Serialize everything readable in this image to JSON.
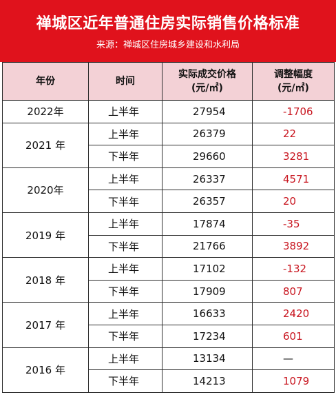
{
  "title": "禅城区近年普通住房实际销售价格标准",
  "source": "来源：禅城区住房城乡建设和水利局",
  "headers": {
    "year": "年份",
    "period": "时间",
    "price_line1": "实际成交价格",
    "price_line2": "(元/㎡)",
    "adj_line1": "调整幅度",
    "adj_line2": "(元/㎡)"
  },
  "groups": [
    {
      "year": "2022年",
      "rows": [
        {
          "period": "上半年",
          "price": "27954",
          "adj": "-1706"
        }
      ]
    },
    {
      "year": "2021 年",
      "rows": [
        {
          "period": "上半年",
          "price": "26379",
          "adj": "22"
        },
        {
          "period": "下半年",
          "price": "29660",
          "adj": "3281"
        }
      ]
    },
    {
      "year": "2020年",
      "rows": [
        {
          "period": "上半年",
          "price": "26337",
          "adj": "4571"
        },
        {
          "period": "下半年",
          "price": "26357",
          "adj": "20"
        }
      ]
    },
    {
      "year": "2019 年",
      "rows": [
        {
          "period": "上半年",
          "price": "17874",
          "adj": "-35"
        },
        {
          "period": "下半年",
          "price": "21766",
          "adj": "3892"
        }
      ]
    },
    {
      "year": "2018 年",
      "rows": [
        {
          "period": "上半年",
          "price": "17102",
          "adj": "-132"
        },
        {
          "period": "下半年",
          "price": "17909",
          "adj": "807"
        }
      ]
    },
    {
      "year": "2017 年",
      "rows": [
        {
          "period": "上半年",
          "price": "16633",
          "adj": "2420"
        },
        {
          "period": "下半年",
          "price": "17234",
          "adj": "601"
        }
      ]
    },
    {
      "year": "2016 年",
      "rows": [
        {
          "period": "上半年",
          "price": "13134",
          "adj": "—"
        },
        {
          "period": "下半年",
          "price": "14213",
          "adj": "1079"
        }
      ]
    }
  ],
  "colors": {
    "banner": "#e0121c",
    "header_bg": "#f3d1d6",
    "adjust_text": "#c8141e"
  }
}
